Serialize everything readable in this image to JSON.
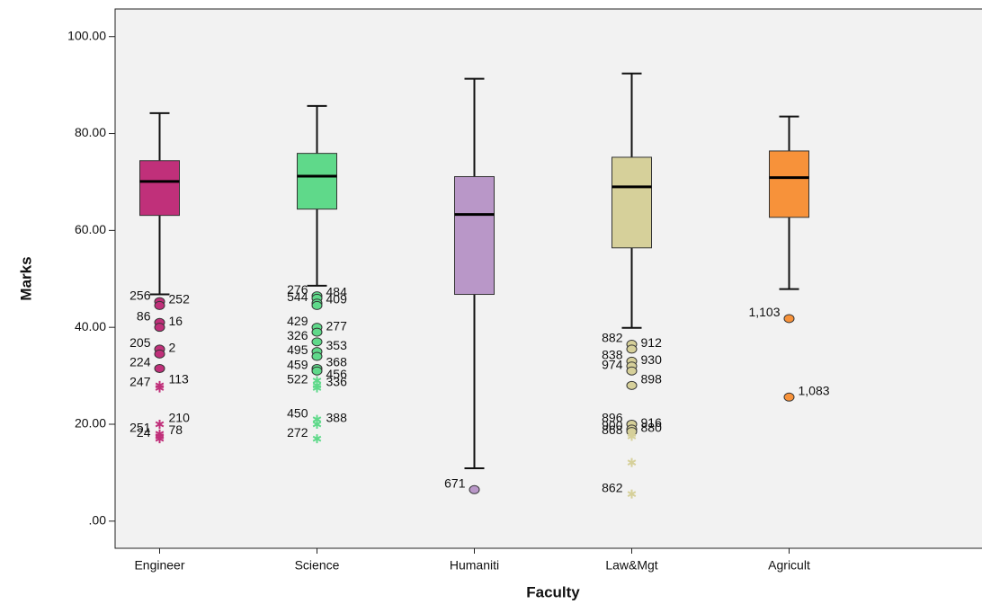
{
  "chart_data": {
    "type": "boxplot",
    "x_label": "Faculty",
    "y_label": "Marks",
    "categories": [
      "Engineer",
      "Science",
      "Humaniti",
      "Law&Mgt",
      "Agricult"
    ],
    "ylim": [
      -5.6,
      105.7
    ],
    "yticks": [
      {
        "value": 0,
        "label": ".00"
      },
      {
        "value": 20,
        "label": "20.00"
      },
      {
        "value": 40,
        "label": "40.00"
      },
      {
        "value": 60,
        "label": "60.00"
      },
      {
        "value": 80,
        "label": "80.00"
      },
      {
        "value": 100,
        "label": "100.00"
      }
    ],
    "boxes": [
      {
        "color": "#c0307a",
        "whisker_low": 46.8,
        "q1": 63.1,
        "median": 70.1,
        "q3": 74.4,
        "whisker_high": 84.2,
        "outliers": [
          {
            "value": 45.3,
            "kind": "circle",
            "label": "256"
          },
          {
            "value": 44.5,
            "kind": "circle",
            "label": "252"
          },
          {
            "value": 41,
            "kind": "circle",
            "label": "86"
          },
          {
            "value": 40,
            "kind": "circle",
            "label": "16"
          },
          {
            "value": 35.5,
            "kind": "circle",
            "label": "205"
          },
          {
            "value": 34.5,
            "kind": "circle",
            "label": "2"
          },
          {
            "value": 31.5,
            "kind": "circle",
            "label": "224"
          },
          {
            "value": 28,
            "kind": "star",
            "label": "113"
          },
          {
            "value": 27.5,
            "kind": "star",
            "label": "247"
          },
          {
            "value": 20,
            "kind": "star",
            "label": "210"
          },
          {
            "value": 18,
            "kind": "star",
            "label": "251"
          },
          {
            "value": 17.5,
            "kind": "star",
            "label": "78"
          },
          {
            "value": 17,
            "kind": "star",
            "label": "24"
          }
        ]
      },
      {
        "color": "#5fd98a",
        "whisker_low": 48.6,
        "q1": 64.4,
        "median": 71.2,
        "q3": 75.9,
        "whisker_high": 85.7,
        "outliers": [
          {
            "value": 46.5,
            "kind": "circle",
            "label": "276"
          },
          {
            "value": 46,
            "kind": "circle",
            "label": "484"
          },
          {
            "value": 45,
            "kind": "circle",
            "label": "544"
          },
          {
            "value": 44.5,
            "kind": "circle",
            "label": "409"
          },
          {
            "value": 40,
            "kind": "circle",
            "label": "429"
          },
          {
            "value": 39,
            "kind": "circle",
            "label": "277"
          },
          {
            "value": 37,
            "kind": "circle",
            "label": "326"
          },
          {
            "value": 35,
            "kind": "circle",
            "label": "353"
          },
          {
            "value": 34,
            "kind": "circle",
            "label": "495"
          },
          {
            "value": 31.5,
            "kind": "circle",
            "label": "368"
          },
          {
            "value": 31,
            "kind": "circle",
            "label": "459"
          },
          {
            "value": 29,
            "kind": "star",
            "label": "456"
          },
          {
            "value": 28,
            "kind": "star",
            "label": "522"
          },
          {
            "value": 27.5,
            "kind": "star",
            "label": "336"
          },
          {
            "value": 21,
            "kind": "star",
            "label": "450"
          },
          {
            "value": 20,
            "kind": "star",
            "label": "388"
          },
          {
            "value": 17,
            "kind": "star",
            "label": "272"
          }
        ]
      },
      {
        "color": "#b997c8",
        "whisker_low": 10.9,
        "q1": 46.8,
        "median": 63.3,
        "q3": 71.1,
        "whisker_high": 91.3,
        "outliers": [
          {
            "value": 6.5,
            "kind": "circle",
            "label": "671"
          }
        ]
      },
      {
        "color": "#d6d09a",
        "whisker_low": 39.9,
        "q1": 56.4,
        "median": 69.0,
        "q3": 75.1,
        "whisker_high": 92.4,
        "outliers": [
          {
            "value": 36.5,
            "kind": "circle",
            "label": "882"
          },
          {
            "value": 35.5,
            "kind": "circle",
            "label": "912"
          },
          {
            "value": 33,
            "kind": "circle",
            "label": "838"
          },
          {
            "value": 32,
            "kind": "circle",
            "label": "930"
          },
          {
            "value": 31,
            "kind": "circle",
            "label": "974"
          },
          {
            "value": 28,
            "kind": "circle",
            "label": "898"
          },
          {
            "value": 20,
            "kind": "circle",
            "label": "896"
          },
          {
            "value": 19,
            "kind": "circle",
            "label": "916"
          },
          {
            "value": 18.5,
            "kind": "circle",
            "label": "900"
          },
          {
            "value": 18,
            "kind": "star",
            "label": "880"
          },
          {
            "value": 17.5,
            "kind": "star",
            "label": "868"
          },
          {
            "value": 12.1,
            "kind": "star",
            "label": null
          },
          {
            "value": 5.6,
            "kind": "star",
            "label": "862"
          }
        ]
      },
      {
        "color": "#f7923a",
        "whisker_low": 47.9,
        "q1": 62.7,
        "median": 70.9,
        "q3": 76.4,
        "whisker_high": 83.5,
        "outliers": [
          {
            "value": 41.8,
            "kind": "circle",
            "label": "1,103"
          },
          {
            "value": 25.6,
            "kind": "circle",
            "label": "1,083"
          }
        ]
      }
    ]
  }
}
